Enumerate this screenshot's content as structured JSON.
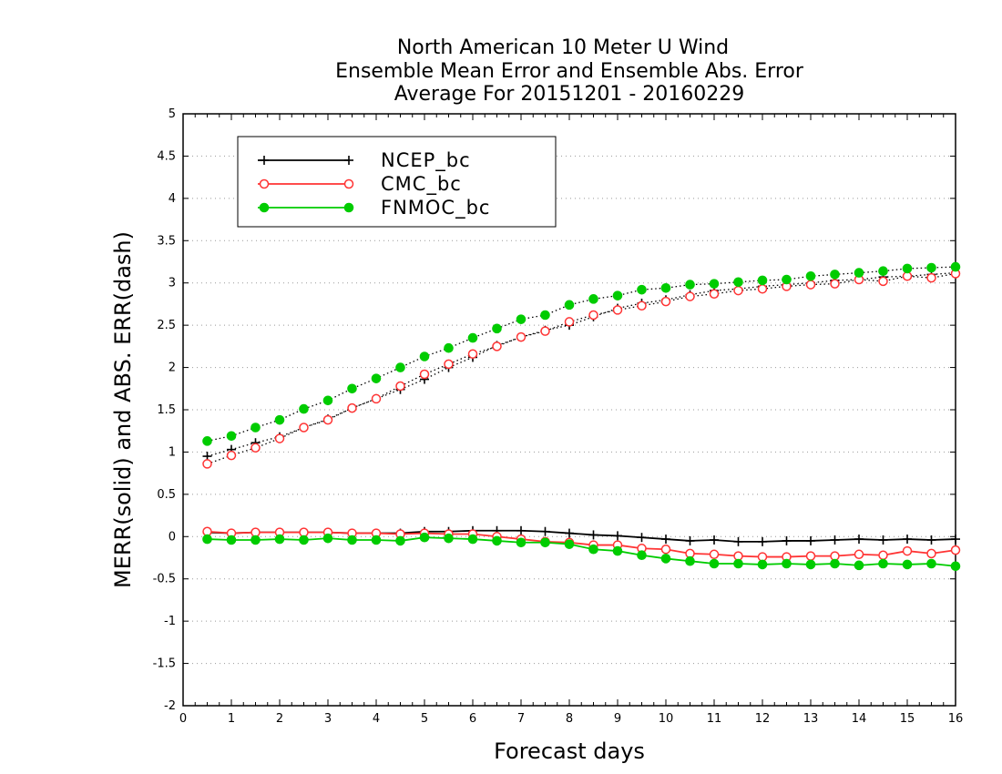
{
  "chart_data": {
    "type": "line",
    "title": [
      "North American 10 Meter U Wind",
      "Ensemble Mean Error and Ensemble Abs. Error",
      "Average For 20151201 - 20160229"
    ],
    "xlabel": "Forecast days",
    "ylabel": "MERR(solid) and ABS. ERR(dash)",
    "xlim": [
      0,
      16
    ],
    "ylim": [
      -2,
      5
    ],
    "xticks": [
      "0",
      "1",
      "2",
      "3",
      "4",
      "5",
      "6",
      "7",
      "8",
      "9",
      "10",
      "11",
      "12",
      "13",
      "14",
      "15",
      "16"
    ],
    "yticks": [
      "-2",
      "-1.5",
      "-1",
      "-0.5",
      "0",
      "0.5",
      "1",
      "1.5",
      "2",
      "2.5",
      "3",
      "3.5",
      "4",
      "4.5",
      "5"
    ],
    "grid": "horizontal-dotted",
    "legend_position": "top-left",
    "x": [
      0.5,
      1,
      1.5,
      2,
      2.5,
      3,
      3.5,
      4,
      4.5,
      5,
      5.5,
      6,
      6.5,
      7,
      7.5,
      8,
      8.5,
      9,
      9.5,
      10,
      10.5,
      11,
      11.5,
      12,
      12.5,
      13,
      13.5,
      14,
      14.5,
      15,
      15.5,
      16
    ],
    "series": [
      {
        "name": "NCEP_bc",
        "color": "#000000",
        "marker": "plus",
        "merr": [
          0.05,
          0.04,
          0.05,
          0.05,
          0.05,
          0.05,
          0.04,
          0.04,
          0.04,
          0.06,
          0.06,
          0.07,
          0.07,
          0.07,
          0.06,
          0.04,
          0.02,
          0.01,
          -0.01,
          -0.03,
          -0.05,
          -0.04,
          -0.06,
          -0.06,
          -0.05,
          -0.05,
          -0.04,
          -0.03,
          -0.04,
          -0.03,
          -0.04,
          -0.03
        ],
        "abs_err": [
          0.95,
          1.03,
          1.11,
          1.18,
          1.29,
          1.39,
          1.52,
          1.63,
          1.74,
          1.86,
          2.0,
          2.12,
          2.26,
          2.36,
          2.44,
          2.5,
          2.6,
          2.7,
          2.76,
          2.8,
          2.86,
          2.91,
          2.93,
          2.96,
          2.98,
          3.0,
          3.03,
          3.04,
          3.07,
          3.08,
          3.1,
          3.12
        ]
      },
      {
        "name": "CMC_bc",
        "color": "#ff3333",
        "marker": "open-circle",
        "merr": [
          0.06,
          0.04,
          0.05,
          0.05,
          0.05,
          0.05,
          0.04,
          0.04,
          0.03,
          0.04,
          0.03,
          0.03,
          0.0,
          -0.03,
          -0.06,
          -0.07,
          -0.1,
          -0.1,
          -0.14,
          -0.15,
          -0.2,
          -0.21,
          -0.23,
          -0.24,
          -0.24,
          -0.23,
          -0.23,
          -0.21,
          -0.22,
          -0.17,
          -0.2,
          -0.16
        ],
        "abs_err": [
          0.86,
          0.96,
          1.05,
          1.16,
          1.29,
          1.38,
          1.52,
          1.63,
          1.78,
          1.92,
          2.04,
          2.16,
          2.25,
          2.36,
          2.43,
          2.54,
          2.62,
          2.68,
          2.73,
          2.78,
          2.84,
          2.87,
          2.91,
          2.93,
          2.96,
          2.98,
          2.99,
          3.04,
          3.02,
          3.08,
          3.06,
          3.11
        ]
      },
      {
        "name": "FNMOC_bc",
        "color": "#00cc00",
        "marker": "filled-circle",
        "merr": [
          -0.03,
          -0.04,
          -0.04,
          -0.03,
          -0.04,
          -0.02,
          -0.04,
          -0.04,
          -0.05,
          -0.01,
          -0.02,
          -0.03,
          -0.05,
          -0.07,
          -0.07,
          -0.09,
          -0.15,
          -0.17,
          -0.22,
          -0.26,
          -0.29,
          -0.32,
          -0.32,
          -0.33,
          -0.32,
          -0.33,
          -0.32,
          -0.34,
          -0.32,
          -0.33,
          -0.32,
          -0.35
        ],
        "abs_err": [
          1.13,
          1.19,
          1.29,
          1.38,
          1.51,
          1.61,
          1.75,
          1.87,
          2.0,
          2.13,
          2.23,
          2.35,
          2.46,
          2.57,
          2.62,
          2.74,
          2.81,
          2.85,
          2.92,
          2.94,
          2.98,
          2.99,
          3.01,
          3.03,
          3.04,
          3.08,
          3.1,
          3.12,
          3.14,
          3.17,
          3.18,
          3.19
        ]
      }
    ]
  }
}
